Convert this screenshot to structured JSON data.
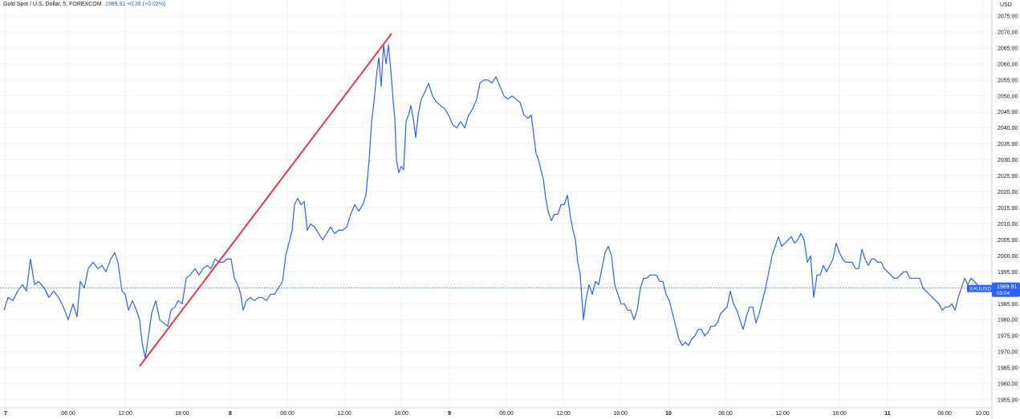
{
  "header": {
    "symbol_title": "Gold Spot / U.S. Dollar, 5, FOREXCOM",
    "last_price": "1989.91",
    "change": "+0.36 (+0.02%)"
  },
  "price_axis": {
    "currency_label": "USD",
    "price_tag_symbol": "XAUUSD",
    "price_tag_value": "1989.91",
    "price_tag_countdown": "03:04",
    "tag_color": "#2962ff"
  },
  "chart_data": {
    "type": "line",
    "title": "Gold Spot / U.S. Dollar, 5, FOREXCOM",
    "xlabel": "",
    "ylabel": "",
    "ylim": [
      1952.5,
      2080
    ],
    "xlim": [
      0,
      1229
    ],
    "x_tick_labels": [
      {
        "label": "7",
        "x": 7,
        "bold": true
      },
      {
        "label": "06:00",
        "x": 85
      },
      {
        "label": "12:00",
        "x": 156
      },
      {
        "label": "18:00",
        "x": 227
      },
      {
        "label": "8",
        "x": 287,
        "bold": true
      },
      {
        "label": "06:00",
        "x": 358
      },
      {
        "label": "12:00",
        "x": 429
      },
      {
        "label": "18:00",
        "x": 500
      },
      {
        "label": "9",
        "x": 560,
        "bold": true
      },
      {
        "label": "06:00",
        "x": 631
      },
      {
        "label": "12:00",
        "x": 702
      },
      {
        "label": "18:00",
        "x": 773
      },
      {
        "label": "10",
        "x": 833,
        "bold": true
      },
      {
        "label": "06:00",
        "x": 904
      },
      {
        "label": "12:00",
        "x": 975
      },
      {
        "label": "18:00",
        "x": 1046
      },
      {
        "label": "11",
        "x": 1106,
        "bold": true
      },
      {
        "label": "06:00",
        "x": 1177
      },
      {
        "label": "10:00",
        "x": 1224
      }
    ],
    "y_ticks": [
      1955,
      1960,
      1965,
      1970,
      1975,
      1980,
      1985,
      1990,
      1995,
      2000,
      2005,
      2010,
      2015,
      2020,
      2025,
      2030,
      2035,
      2040,
      2045,
      2050,
      2055,
      2060,
      2065,
      2070,
      2075
    ],
    "grid": true,
    "current_price_line": 1989.91,
    "series": [
      {
        "color": "#2962ff",
        "points": [
          [
            5,
            1983
          ],
          [
            10,
            1987
          ],
          [
            16,
            1986
          ],
          [
            22,
            1989
          ],
          [
            28,
            1991
          ],
          [
            33,
            1989
          ],
          [
            38,
            1999
          ],
          [
            43,
            1991
          ],
          [
            48,
            1992
          ],
          [
            55,
            1990
          ],
          [
            61,
            1987
          ],
          [
            67,
            1989
          ],
          [
            73,
            1987
          ],
          [
            79,
            1984
          ],
          [
            85,
            1980
          ],
          [
            91,
            1985
          ],
          [
            96,
            1981
          ],
          [
            100,
            1992
          ],
          [
            105,
            1990
          ],
          [
            110,
            1996
          ],
          [
            116,
            1998
          ],
          [
            122,
            1996
          ],
          [
            127,
            1997
          ],
          [
            132,
            1995
          ],
          [
            138,
            1999
          ],
          [
            143,
            2001
          ],
          [
            147,
            1998
          ],
          [
            152,
            1989
          ],
          [
            156,
            1988
          ],
          [
            160,
            1983
          ],
          [
            165,
            1986
          ],
          [
            170,
            1983
          ],
          [
            174,
            1980
          ],
          [
            177,
            1973
          ],
          [
            181,
            1968
          ],
          [
            185,
            1975
          ],
          [
            189,
            1982
          ],
          [
            194,
            1986
          ],
          [
            199,
            1980
          ],
          [
            204,
            1979
          ],
          [
            209,
            1978
          ],
          [
            213,
            1983
          ],
          [
            218,
            1984
          ],
          [
            222,
            1986
          ],
          [
            227,
            1985
          ],
          [
            232,
            1993
          ],
          [
            237,
            1994
          ],
          [
            243,
            1996
          ],
          [
            248,
            1994
          ],
          [
            253,
            1996
          ],
          [
            258,
            1997
          ],
          [
            263,
            1996
          ],
          [
            268,
            1999
          ],
          [
            273,
            1998
          ],
          [
            278,
            1998
          ],
          [
            283,
            1999
          ],
          [
            288,
            1999
          ],
          [
            292,
            1993
          ],
          [
            296,
            1991
          ],
          [
            300,
            1988
          ],
          [
            303,
            1983
          ],
          [
            307,
            1986
          ],
          [
            312,
            1987
          ],
          [
            317,
            1986
          ],
          [
            322,
            1987
          ],
          [
            327,
            1987
          ],
          [
            332,
            1986
          ],
          [
            337,
            1988
          ],
          [
            342,
            1988
          ],
          [
            347,
            1990
          ],
          [
            352,
            1992
          ],
          [
            356,
            2000
          ],
          [
            360,
            2004
          ],
          [
            364,
            2008
          ],
          [
            367,
            2016
          ],
          [
            371,
            2018
          ],
          [
            375,
            2016
          ],
          [
            379,
            2017
          ],
          [
            383,
            2008
          ],
          [
            387,
            2010
          ],
          [
            392,
            2009
          ],
          [
            397,
            2007
          ],
          [
            402,
            2005
          ],
          [
            407,
            2007
          ],
          [
            412,
            2009
          ],
          [
            417,
            2007
          ],
          [
            422,
            2008
          ],
          [
            427,
            2008
          ],
          [
            432,
            2009
          ],
          [
            437,
            2013
          ],
          [
            442,
            2016
          ],
          [
            447,
            2014
          ],
          [
            452,
            2016
          ],
          [
            456,
            2019
          ],
          [
            460,
            2030
          ],
          [
            463,
            2042
          ],
          [
            466,
            2048
          ],
          [
            469,
            2056
          ],
          [
            472,
            2062
          ],
          [
            475,
            2053
          ],
          [
            478,
            2066
          ],
          [
            481,
            2060
          ],
          [
            484,
            2066
          ],
          [
            487,
            2058
          ],
          [
            490,
            2048
          ],
          [
            492,
            2043
          ],
          [
            494,
            2030
          ],
          [
            497,
            2026
          ],
          [
            500,
            2028
          ],
          [
            503,
            2027
          ],
          [
            506,
            2042
          ],
          [
            509,
            2044
          ],
          [
            512,
            2047
          ],
          [
            515,
            2043
          ],
          [
            518,
            2037
          ],
          [
            521,
            2044
          ],
          [
            525,
            2049
          ],
          [
            529,
            2051
          ],
          [
            534,
            2054
          ],
          [
            539,
            2050
          ],
          [
            544,
            2048
          ],
          [
            549,
            2047
          ],
          [
            554,
            2046
          ],
          [
            559,
            2044
          ],
          [
            564,
            2041
          ],
          [
            569,
            2040
          ],
          [
            574,
            2042
          ],
          [
            579,
            2040
          ],
          [
            584,
            2044
          ],
          [
            589,
            2046
          ],
          [
            594,
            2049
          ],
          [
            598,
            2054
          ],
          [
            603,
            2055
          ],
          [
            608,
            2055
          ],
          [
            613,
            2054
          ],
          [
            618,
            2056
          ],
          [
            623,
            2053
          ],
          [
            628,
            2050
          ],
          [
            633,
            2049
          ],
          [
            638,
            2050
          ],
          [
            643,
            2049
          ],
          [
            648,
            2048
          ],
          [
            653,
            2044
          ],
          [
            658,
            2043
          ],
          [
            662,
            2044
          ],
          [
            665,
            2038
          ],
          [
            668,
            2032
          ],
          [
            671,
            2030
          ],
          [
            674,
            2027
          ],
          [
            677,
            2024
          ],
          [
            680,
            2018
          ],
          [
            683,
            2014
          ],
          [
            687,
            2011
          ],
          [
            691,
            2013
          ],
          [
            695,
            2013
          ],
          [
            699,
            2016
          ],
          [
            703,
            2016
          ],
          [
            707,
            2019
          ],
          [
            711,
            2012
          ],
          [
            714,
            2008
          ],
          [
            717,
            2005
          ],
          [
            720,
            1998
          ],
          [
            723,
            1994
          ],
          [
            727,
            1980
          ],
          [
            730,
            1986
          ],
          [
            734,
            1991
          ],
          [
            738,
            1988
          ],
          [
            742,
            1992
          ],
          [
            746,
            1991
          ],
          [
            750,
            1996
          ],
          [
            754,
            2001
          ],
          [
            758,
            2003
          ],
          [
            762,
            2000
          ],
          [
            766,
            1991
          ],
          [
            770,
            1988
          ],
          [
            774,
            1985
          ],
          [
            778,
            1985
          ],
          [
            782,
            1983
          ],
          [
            786,
            1983
          ],
          [
            790,
            1980
          ],
          [
            794,
            1983
          ],
          [
            798,
            1990
          ],
          [
            802,
            1993
          ],
          [
            806,
            1993
          ],
          [
            810,
            1994
          ],
          [
            814,
            1994
          ],
          [
            818,
            1994
          ],
          [
            822,
            1992
          ],
          [
            826,
            1992
          ],
          [
            830,
            1988
          ],
          [
            834,
            1986
          ],
          [
            838,
            1982
          ],
          [
            842,
            1978
          ],
          [
            846,
            1974
          ],
          [
            850,
            1972
          ],
          [
            854,
            1973
          ],
          [
            858,
            1972
          ],
          [
            862,
            1974
          ],
          [
            866,
            1975
          ],
          [
            870,
            1977
          ],
          [
            874,
            1977
          ],
          [
            878,
            1975
          ],
          [
            882,
            1976
          ],
          [
            886,
            1978
          ],
          [
            890,
            1978
          ],
          [
            894,
            1979
          ],
          [
            898,
            1982
          ],
          [
            902,
            1983
          ],
          [
            906,
            1984
          ],
          [
            910,
            1989
          ],
          [
            914,
            1985
          ],
          [
            918,
            1983
          ],
          [
            922,
            1980
          ],
          [
            926,
            1977
          ],
          [
            930,
            1981
          ],
          [
            934,
            1984
          ],
          [
            938,
            1984
          ],
          [
            942,
            1979
          ],
          [
            946,
            1982
          ],
          [
            950,
            1986
          ],
          [
            954,
            1990
          ],
          [
            958,
            1995
          ],
          [
            962,
            2000
          ],
          [
            966,
            2003
          ],
          [
            970,
            2006
          ],
          [
            974,
            2003
          ],
          [
            978,
            2004
          ],
          [
            982,
            2005
          ],
          [
            986,
            2006
          ],
          [
            990,
            2004
          ],
          [
            994,
            2005
          ],
          [
            998,
            2007
          ],
          [
            1002,
            2005
          ],
          [
            1006,
            1998
          ],
          [
            1010,
            2000
          ],
          [
            1014,
            1987
          ],
          [
            1018,
            1994
          ],
          [
            1022,
            1994
          ],
          [
            1026,
            1997
          ],
          [
            1030,
            1995
          ],
          [
            1034,
            1997
          ],
          [
            1038,
            1999
          ],
          [
            1042,
            2004
          ],
          [
            1046,
            2001
          ],
          [
            1050,
            1999
          ],
          [
            1054,
            1998
          ],
          [
            1058,
            1998
          ],
          [
            1062,
            1998
          ],
          [
            1066,
            1996
          ],
          [
            1070,
            1996
          ],
          [
            1074,
            2002
          ],
          [
            1078,
            1999
          ],
          [
            1082,
            1997
          ],
          [
            1086,
            1999
          ],
          [
            1090,
            1999
          ],
          [
            1094,
            1998
          ],
          [
            1098,
            1998
          ],
          [
            1102,
            1996
          ],
          [
            1106,
            1995
          ],
          [
            1110,
            1994
          ],
          [
            1114,
            1993
          ],
          [
            1118,
            1993
          ],
          [
            1122,
            1994
          ],
          [
            1126,
            1995
          ],
          [
            1130,
            1995
          ],
          [
            1134,
            1993
          ],
          [
            1138,
            1993
          ],
          [
            1142,
            1993
          ],
          [
            1146,
            1993
          ],
          [
            1150,
            1990
          ],
          [
            1154,
            1989
          ],
          [
            1158,
            1988
          ],
          [
            1162,
            1987
          ],
          [
            1166,
            1986
          ],
          [
            1170,
            1985
          ],
          [
            1174,
            1983
          ],
          [
            1178,
            1984
          ],
          [
            1182,
            1984
          ],
          [
            1186,
            1985
          ],
          [
            1190,
            1983
          ],
          [
            1194,
            1987
          ],
          [
            1198,
            1990
          ],
          [
            1202,
            1993
          ],
          [
            1206,
            1991
          ],
          [
            1210,
            1993
          ],
          [
            1214,
            1992
          ],
          [
            1218,
            1991
          ],
          [
            1222,
            1990
          ]
        ]
      },
      {
        "color": "#f23645",
        "points": [
          [
            174,
            1965.5
          ],
          [
            488,
            2069.5
          ]
        ]
      }
    ]
  }
}
